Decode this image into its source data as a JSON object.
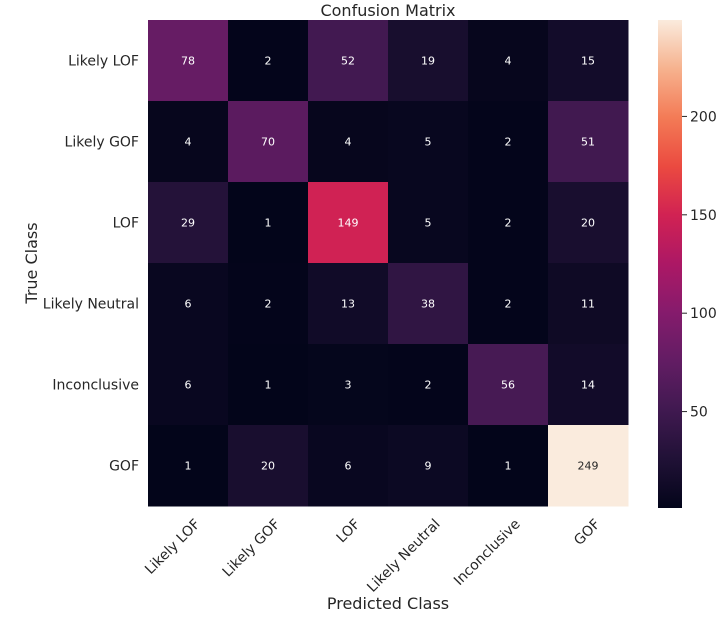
{
  "chart_data": {
    "type": "heatmap",
    "title": "Confusion Matrix",
    "xlabel": "Predicted Class",
    "ylabel": "True Class",
    "x_categories": [
      "Likely LOF",
      "Likely GOF",
      "LOF",
      "Likely Neutral",
      "Inconclusive",
      "GOF"
    ],
    "y_categories": [
      "Likely LOF",
      "Likely GOF",
      "LOF",
      "Likely Neutral",
      "Inconclusive",
      "GOF"
    ],
    "values": [
      [
        78,
        2,
        52,
        19,
        4,
        15
      ],
      [
        4,
        70,
        4,
        5,
        2,
        51
      ],
      [
        29,
        1,
        149,
        5,
        2,
        20
      ],
      [
        6,
        2,
        13,
        38,
        2,
        11
      ],
      [
        6,
        1,
        3,
        2,
        56,
        14
      ],
      [
        1,
        20,
        6,
        9,
        1,
        249
      ]
    ],
    "colorbar": {
      "range": [
        1,
        249
      ],
      "ticks": [
        50,
        100,
        150,
        200
      ],
      "colormap": "rocket"
    },
    "grid": false
  }
}
